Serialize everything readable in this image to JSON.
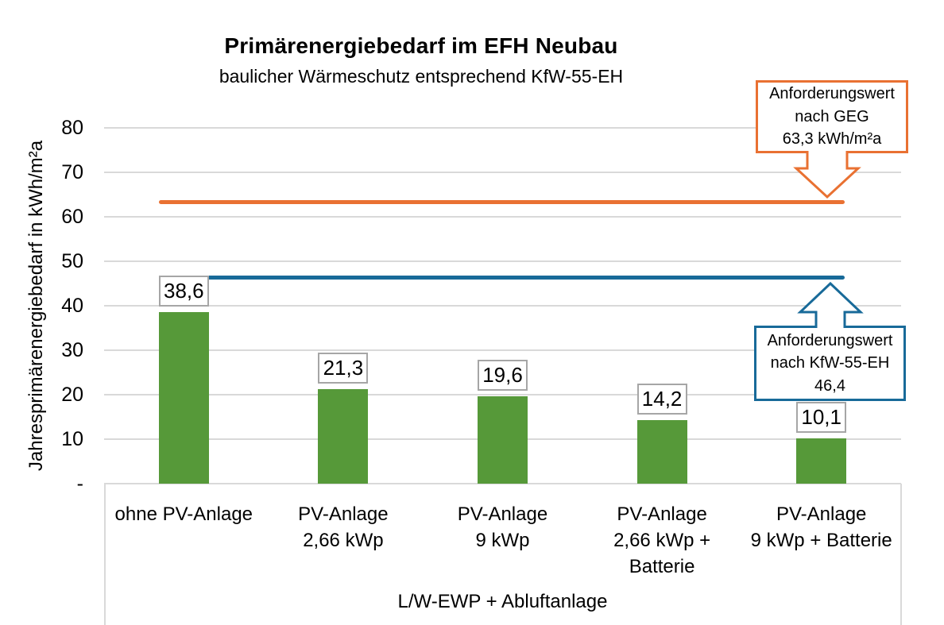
{
  "chart_data": {
    "type": "bar",
    "title": "Primärenergiebedarf im EFH Neubau",
    "subtitle": "baulicher Wärmeschutz entsprechend KfW-55-EH",
    "ylabel": "Jahresprimärenergiebedarf in kWh/m²a",
    "group_label": "L/W-EWP + Abluftanlage",
    "categories": [
      "ohne PV-Anlage",
      "PV-Anlage\n2,66 kWp",
      "PV-Anlage\n9 kWp",
      "PV-Anlage\n2,66 kWp +\nBatterie",
      "PV-Anlage\n9 kWp + Batterie"
    ],
    "values": [
      38.6,
      21.3,
      19.6,
      14.2,
      10.1
    ],
    "value_labels": [
      "38,6",
      "21,3",
      "19,6",
      "14,2",
      "10,1"
    ],
    "ylim": [
      0,
      80
    ],
    "ytick_step": 10,
    "ytick_labels": [
      "-",
      "10",
      "20",
      "30",
      "40",
      "50",
      "60",
      "70",
      "80"
    ],
    "grid": true,
    "bar_color": "#569939",
    "gridline_color": "#d9d9d9",
    "value_label_border_color": "#a6a6a6",
    "reference_lines": [
      {
        "name": "GEG",
        "value": 63.3,
        "color": "#e97132",
        "label": "Anforderungswert\nnach GEG\n63,3 kWh/m²a",
        "arrow": "down"
      },
      {
        "name": "KfW-55-EH",
        "value": 46.4,
        "color": "#186a99",
        "label": "Anforderungswert\nnach KfW-55-EH\n46,4",
        "arrow": "up"
      }
    ]
  }
}
